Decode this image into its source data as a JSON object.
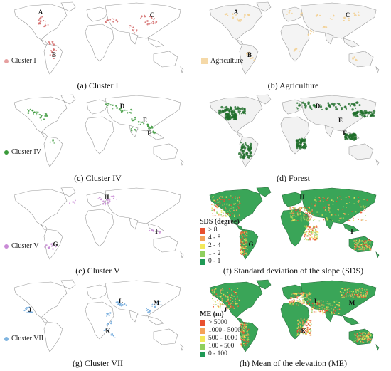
{
  "panels": [
    {
      "id": "a",
      "caption": "(a) Cluster I",
      "legend": "Cluster I",
      "legend_color": "#e6a0a0",
      "letters": [
        "A",
        "B",
        "C"
      ],
      "style": "sparse",
      "dot_color": "#d36a6a",
      "land": "#ffffff"
    },
    {
      "id": "b",
      "caption": "(b) Agriculture",
      "legend": "Agriculture",
      "legend_color": "#f5d9a8",
      "letters": [
        "A",
        "B",
        "C"
      ],
      "style": "sparse",
      "dot_color": "#f2cf8f",
      "land": "#f4f4f4"
    },
    {
      "id": "c",
      "caption": "(c) Cluster IV",
      "legend": "Cluster IV",
      "legend_color": "#3a9a3a",
      "letters": [
        "D",
        "E",
        "F"
      ],
      "style": "sparse",
      "dot_color": "#3f9b3f",
      "land": "#ffffff"
    },
    {
      "id": "d",
      "caption": "(d) Forest",
      "legend": "",
      "legend_color": "#1f6e2b",
      "letters": [
        "D",
        "E",
        "F"
      ],
      "style": "forest",
      "dot_color": "#1f6e2b",
      "land": "#f2f2f2"
    },
    {
      "id": "e",
      "caption": "(e) Cluster V",
      "legend": "Cluster V",
      "legend_color": "#c98ad6",
      "letters": [
        "G",
        "H",
        "I"
      ],
      "style": "sparse",
      "dot_color": "#c98ad6",
      "land": "#ffffff"
    },
    {
      "id": "f",
      "caption": "(f) Standard deviation of the slope (SDS)",
      "legend": "",
      "legend_color": "",
      "letters": [
        "G",
        "H",
        "I"
      ],
      "style": "slope",
      "dot_color": "",
      "land": "#2e9a4e"
    },
    {
      "id": "g",
      "caption": "(g) Cluster VII",
      "legend": "Cluster VII",
      "legend_color": "#7fb4e0",
      "letters": [
        "J",
        "K",
        "L",
        "M"
      ],
      "style": "sparse",
      "dot_color": "#6fa8dc",
      "land": "#ffffff"
    },
    {
      "id": "h",
      "caption": "(h) Mean of the elevation (ME)",
      "legend": "",
      "legend_color": "",
      "letters": [
        "J",
        "K",
        "L",
        "M"
      ],
      "style": "elev",
      "dot_color": "",
      "land": "#3a9e4a"
    }
  ],
  "sds_legend": {
    "title": "SDS (degree)",
    "items": [
      {
        "label": "> 8",
        "color": "#e8502f"
      },
      {
        "label": "4 - 8",
        "color": "#f4a259"
      },
      {
        "label": "2 - 4",
        "color": "#f2e85a"
      },
      {
        "label": "1 - 2",
        "color": "#8fcf5e"
      },
      {
        "label": "0 - 1",
        "color": "#1f9a55"
      }
    ]
  },
  "me_legend": {
    "title": "ME (m)",
    "items": [
      {
        "label": "> 5000",
        "color": "#e8502f"
      },
      {
        "label": "1000 - 5000",
        "color": "#f4a259"
      },
      {
        "label": "500 - 1000",
        "color": "#f2e85a"
      },
      {
        "label": "100 - 500",
        "color": "#8fcf5e"
      },
      {
        "label": "0 - 100",
        "color": "#1f9a55"
      }
    ]
  }
}
